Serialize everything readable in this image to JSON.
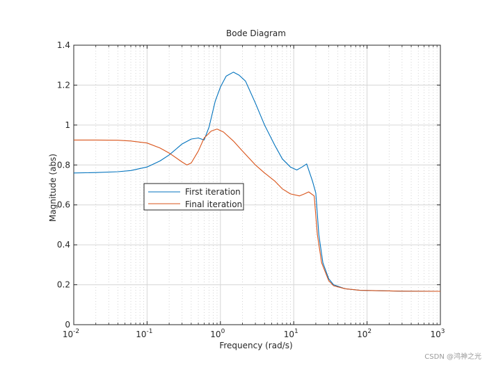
{
  "chart_data": {
    "type": "line",
    "title": "Bode Diagram",
    "xlabel": "Frequency  (rad/s)",
    "ylabel": "Magnitude (abs)",
    "xscale": "log",
    "xlim": [
      0.01,
      1000
    ],
    "ylim": [
      0,
      1.4
    ],
    "x_ticks": [
      {
        "value": 0.01,
        "base": "10",
        "exp": "-2"
      },
      {
        "value": 0.1,
        "base": "10",
        "exp": "-1"
      },
      {
        "value": 1,
        "base": "10",
        "exp": "0"
      },
      {
        "value": 10,
        "base": "10",
        "exp": "1"
      },
      {
        "value": 100,
        "base": "10",
        "exp": "2"
      },
      {
        "value": 1000,
        "base": "10",
        "exp": "3"
      }
    ],
    "y_ticks": [
      {
        "value": 0,
        "label": "0"
      },
      {
        "value": 0.2,
        "label": "0.2"
      },
      {
        "value": 0.4,
        "label": "0.4"
      },
      {
        "value": 0.6,
        "label": "0.6"
      },
      {
        "value": 0.8,
        "label": "0.8"
      },
      {
        "value": 1.0,
        "label": "1"
      },
      {
        "value": 1.2,
        "label": "1.2"
      },
      {
        "value": 1.4,
        "label": "1.4"
      }
    ],
    "grid": true,
    "legend_position": "center-left",
    "series": [
      {
        "name": "First iteration",
        "color": "#0072BD",
        "points": [
          [
            0.01,
            0.76
          ],
          [
            0.02,
            0.762
          ],
          [
            0.04,
            0.766
          ],
          [
            0.06,
            0.772
          ],
          [
            0.1,
            0.79
          ],
          [
            0.15,
            0.82
          ],
          [
            0.2,
            0.85
          ],
          [
            0.3,
            0.905
          ],
          [
            0.4,
            0.93
          ],
          [
            0.5,
            0.935
          ],
          [
            0.6,
            0.925
          ],
          [
            0.7,
            0.99
          ],
          [
            0.85,
            1.12
          ],
          [
            1.0,
            1.19
          ],
          [
            1.2,
            1.245
          ],
          [
            1.5,
            1.265
          ],
          [
            1.8,
            1.25
          ],
          [
            2.2,
            1.22
          ],
          [
            3,
            1.11
          ],
          [
            4,
            1.0
          ],
          [
            5.5,
            0.9
          ],
          [
            7,
            0.83
          ],
          [
            9,
            0.79
          ],
          [
            11,
            0.775
          ],
          [
            13,
            0.79
          ],
          [
            15,
            0.805
          ],
          [
            18,
            0.72
          ],
          [
            20,
            0.66
          ],
          [
            22,
            0.45
          ],
          [
            25,
            0.31
          ],
          [
            30,
            0.23
          ],
          [
            35,
            0.2
          ],
          [
            50,
            0.18
          ],
          [
            80,
            0.172
          ],
          [
            150,
            0.17
          ],
          [
            300,
            0.168
          ],
          [
            1000,
            0.167
          ]
        ]
      },
      {
        "name": "Final iteration",
        "color": "#D95319",
        "points": [
          [
            0.01,
            0.925
          ],
          [
            0.02,
            0.925
          ],
          [
            0.04,
            0.924
          ],
          [
            0.06,
            0.92
          ],
          [
            0.1,
            0.91
          ],
          [
            0.15,
            0.885
          ],
          [
            0.2,
            0.86
          ],
          [
            0.3,
            0.815
          ],
          [
            0.35,
            0.8
          ],
          [
            0.4,
            0.81
          ],
          [
            0.5,
            0.87
          ],
          [
            0.6,
            0.935
          ],
          [
            0.75,
            0.97
          ],
          [
            0.9,
            0.98
          ],
          [
            1.1,
            0.965
          ],
          [
            1.5,
            0.92
          ],
          [
            2,
            0.87
          ],
          [
            3,
            0.8
          ],
          [
            4,
            0.76
          ],
          [
            5.5,
            0.72
          ],
          [
            7,
            0.68
          ],
          [
            9,
            0.655
          ],
          [
            12,
            0.645
          ],
          [
            14,
            0.655
          ],
          [
            16,
            0.665
          ],
          [
            19,
            0.645
          ],
          [
            21,
            0.45
          ],
          [
            24,
            0.31
          ],
          [
            30,
            0.22
          ],
          [
            35,
            0.195
          ],
          [
            50,
            0.18
          ],
          [
            80,
            0.172
          ],
          [
            150,
            0.17
          ],
          [
            300,
            0.168
          ],
          [
            1000,
            0.167
          ]
        ]
      }
    ]
  },
  "watermark": "CSDN @鸿神之光"
}
